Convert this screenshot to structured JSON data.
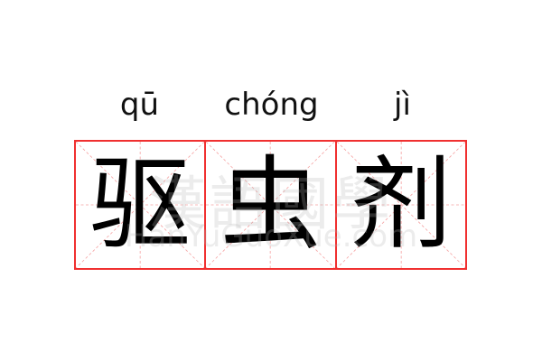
{
  "word": {
    "pinyin": [
      "qū",
      "chóng",
      "jì"
    ],
    "characters": [
      "驱",
      "虫",
      "剂"
    ]
  },
  "watermark": {
    "logo": "漢語國學",
    "site": "HanYuGuoXue.com"
  },
  "colors": {
    "grid_border": "#f03030",
    "grid_guide": "#f5a0a0",
    "character": "#000000"
  }
}
